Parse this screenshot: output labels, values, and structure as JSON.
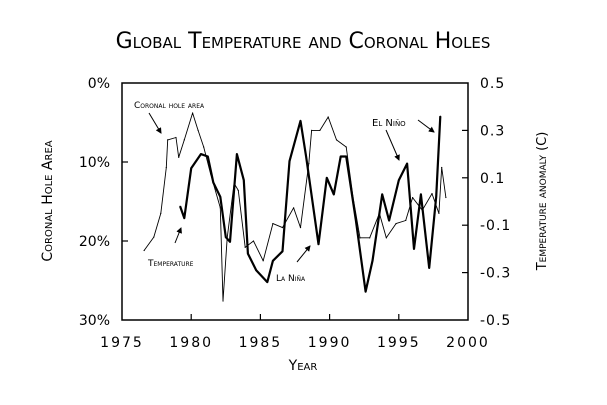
{
  "chart_data": {
    "type": "line",
    "title": "Global Temperature and Coronal Holes",
    "xlabel": "Year",
    "ylabel_left": "Coronal Hole Area",
    "ylabel_right": "Temperature anomaly (C)",
    "xlim": [
      1975,
      2000
    ],
    "ylim_left": [
      30,
      0
    ],
    "ylim_right": [
      -0.5,
      0.5
    ],
    "x_ticks": [
      "1975",
      "1980",
      "1985",
      "1990",
      "1995",
      "2000"
    ],
    "y_ticks_left": [
      "0%",
      "10%",
      "20%",
      "30%"
    ],
    "y_ticks_right": [
      "0.5",
      "0.3",
      "0.1",
      "-0.1",
      "-0.3",
      "-0.5"
    ],
    "grid": false,
    "series": [
      {
        "name": "Coronal hole area",
        "axis": "left",
        "unit": "%",
        "style": "thin",
        "x": [
          1976.6,
          1977.3,
          1977.8,
          1978.2,
          1978.3,
          1978.9,
          1979.1,
          1979.5,
          1980.1,
          1980.5,
          1980.9,
          1981.4,
          1982.1,
          1982.3,
          1982.6,
          1983.1,
          1983.4,
          1983.9,
          1984.5,
          1985.2,
          1985.9,
          1986.6,
          1987.4,
          1987.9,
          1988.5,
          1988.7,
          1989.3,
          1989.9,
          1990.5,
          1991.2,
          1991.7,
          1992.2,
          1992.9,
          1993.6,
          1994.1,
          1994.8,
          1995.5,
          1996.0,
          1996.7,
          1997.4,
          1997.9,
          1998.1,
          1998.4
        ],
        "y": [
          21.2,
          19.5,
          16.5,
          10.7,
          7.2,
          6.9,
          9.4,
          7.2,
          3.8,
          6.0,
          8.1,
          11.5,
          15.8,
          27.6,
          19.6,
          12.7,
          13.6,
          20.8,
          20.0,
          22.5,
          17.8,
          18.3,
          15.8,
          18.3,
          10.2,
          6.0,
          6.0,
          4.3,
          7.2,
          8.1,
          14.5,
          19.6,
          19.6,
          16.5,
          19.6,
          17.8,
          17.4,
          14.5,
          16.1,
          14.0,
          16.5,
          10.7,
          14.5
        ]
      },
      {
        "name": "Temperature",
        "axis": "right",
        "unit": "C",
        "style": "thick",
        "x": [
          1979.2,
          1979.5,
          1980.0,
          1980.7,
          1981.2,
          1981.6,
          1982.1,
          1982.5,
          1982.8,
          1983.3,
          1983.8,
          1984.1,
          1984.7,
          1985.5,
          1985.9,
          1986.6,
          1987.1,
          1987.9,
          1988.3,
          1989.2,
          1989.8,
          1990.3,
          1990.8,
          1991.2,
          1991.9,
          1992.6,
          1993.1,
          1993.8,
          1994.3,
          1995.0,
          1995.6,
          1996.1,
          1996.6,
          1997.2,
          1997.7,
          1998.0
        ],
        "y": [
          -0.02,
          -0.07,
          0.14,
          0.2,
          0.19,
          0.08,
          0.02,
          -0.15,
          -0.17,
          0.2,
          0.09,
          -0.22,
          -0.29,
          -0.34,
          -0.25,
          -0.21,
          0.17,
          0.34,
          0.19,
          -0.18,
          0.1,
          0.03,
          0.19,
          0.19,
          -0.08,
          -0.38,
          -0.25,
          0.03,
          -0.08,
          0.09,
          0.16,
          -0.2,
          0.03,
          -0.28,
          0.02,
          0.36
        ]
      }
    ],
    "annotations": [
      {
        "text": "Coronal hole area"
      },
      {
        "text": "Temperature"
      },
      {
        "text": "La Niña"
      },
      {
        "text": "El Niño"
      }
    ]
  }
}
